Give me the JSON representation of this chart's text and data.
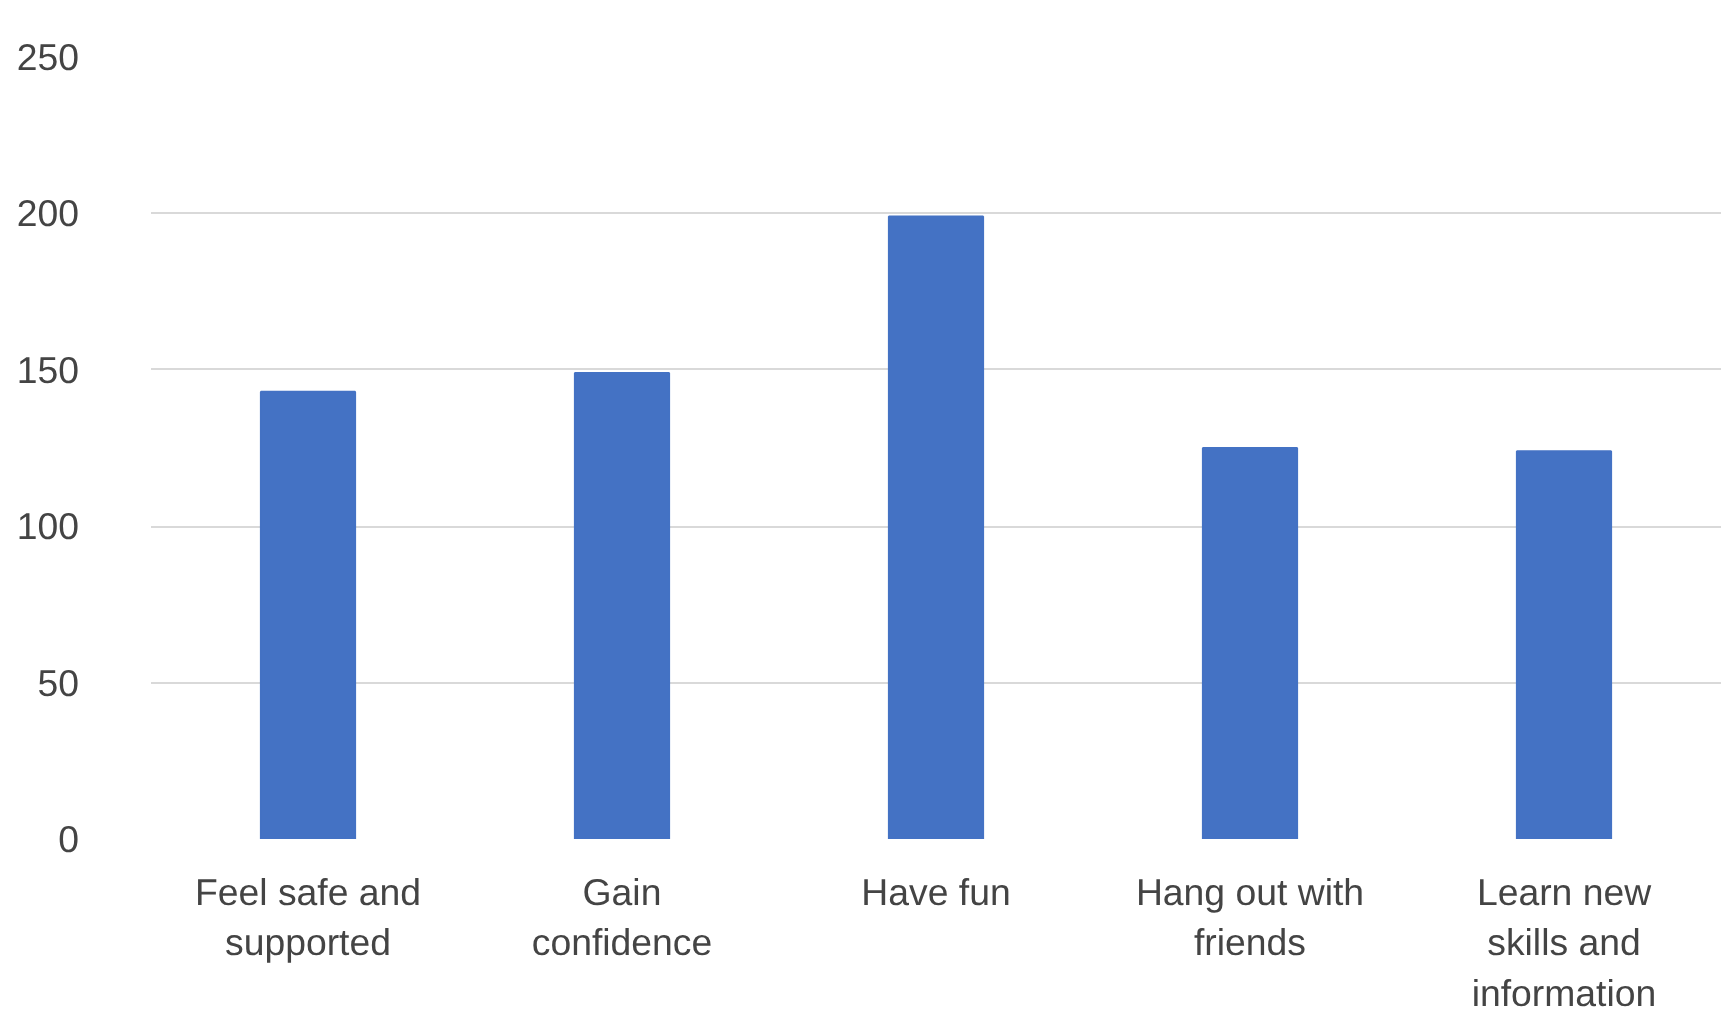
{
  "chart_data": {
    "type": "bar",
    "categories": [
      "Feel safe and supported",
      "Gain confidence",
      "Have fun",
      "Hang out with friends",
      "Learn new skills and information"
    ],
    "values": [
      143,
      149,
      199,
      125,
      124
    ],
    "color": "#4472c4",
    "ylim": [
      0,
      250
    ],
    "yticks": [
      0,
      50,
      100,
      150,
      200,
      250
    ],
    "grid": "y"
  }
}
